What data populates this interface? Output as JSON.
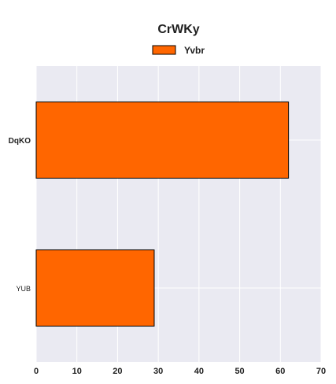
{
  "chart_data": {
    "type": "bar",
    "orientation": "horizontal",
    "title": "CrWKy",
    "categories": [
      "DqKO",
      "YUB"
    ],
    "series": [
      {
        "name": "Yvbr",
        "values": [
          62,
          29
        ],
        "color": "#ff6600"
      }
    ],
    "xlim": [
      0,
      70
    ],
    "xticks": [
      0,
      10,
      20,
      30,
      40,
      50,
      60,
      70
    ],
    "xlabel": "",
    "ylabel": "",
    "grid": true,
    "legend_position": "top-center",
    "colors": {
      "background": "#eaeaf2",
      "grid": "#ffffff",
      "bar_edge": "#000000"
    }
  }
}
